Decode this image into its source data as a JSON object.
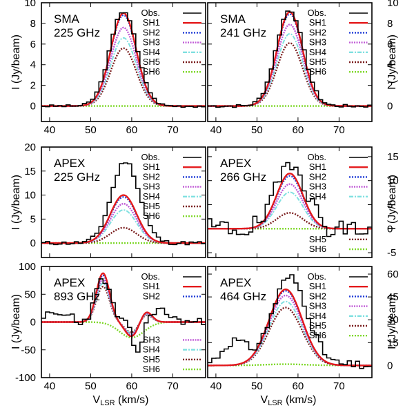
{
  "figure": {
    "x_axis_title": "V",
    "x_axis_title_sub": "LSR",
    "x_axis_title_units": " (km/s)",
    "y_axis_title": "I (Jy/beam)"
  },
  "colors": {
    "Obs.": "#000000",
    "SH1": "#e41a1c",
    "SH2": "#1f3bd6",
    "SH3": "#c05ad6",
    "SH4": "#7fe0e0",
    "SH5": "#7a1d1d",
    "SH6": "#7fd82a"
  },
  "chart_data": [
    {
      "type": "line",
      "title": "SMA 225 GHz",
      "label_lines": [
        "SMA",
        "225 GHz"
      ],
      "xlim": [
        38,
        78
      ],
      "ylim": [
        -1.5,
        10
      ],
      "x_ticks": [
        40,
        50,
        60,
        70
      ],
      "y_ticks": [
        0,
        2,
        4,
        6,
        8,
        10
      ],
      "y_tick_side": "left",
      "legend": {
        "top": [
          "Obs.",
          "SH1",
          "SH2",
          "SH3",
          "SH4",
          "SH5",
          "SH6"
        ],
        "bottom": []
      },
      "model": {
        "center": 58,
        "width": 3.1,
        "peaks": {
          "SH1": 9.0,
          "SH2": 8.8,
          "SH3": 7.6,
          "SH4": 6.6,
          "SH5": 5.6,
          "SH6": 0.0
        }
      },
      "obs": {
        "step": 1.0,
        "x0": 38,
        "noise": 0.12,
        "amp": 9.2,
        "center": 58,
        "width": 3.3,
        "seed": 3
      }
    },
    {
      "type": "line",
      "title": "SMA 241 GHz",
      "label_lines": [
        "SMA",
        "241 GHz"
      ],
      "xlim": [
        38,
        78
      ],
      "ylim": [
        -1.5,
        10
      ],
      "x_ticks": [
        40,
        50,
        60,
        70
      ],
      "y_ticks": [
        0,
        2,
        4,
        6,
        8,
        10
      ],
      "y_tick_side": "right",
      "legend": {
        "top": [
          "Obs.",
          "SH1",
          "SH2",
          "SH3",
          "SH4",
          "SH5",
          "SH6"
        ],
        "bottom": []
      },
      "model": {
        "center": 58,
        "width": 3.1,
        "peaks": {
          "SH1": 9.1,
          "SH2": 8.9,
          "SH3": 7.9,
          "SH4": 7.0,
          "SH5": 6.1,
          "SH6": 0.0
        }
      },
      "obs": {
        "step": 1.0,
        "x0": 38,
        "noise": 0.15,
        "amp": 9.3,
        "center": 58,
        "width": 3.3,
        "seed": 7
      }
    },
    {
      "type": "line",
      "title": "APEX 225 GHz",
      "label_lines": [
        "APEX",
        "225 GHz"
      ],
      "xlim": [
        38,
        78
      ],
      "ylim": [
        -3,
        20
      ],
      "x_ticks": [],
      "y_ticks": [
        0,
        5,
        10,
        15,
        20
      ],
      "y_tick_side": "left",
      "legend": {
        "top": [
          "Obs.",
          "SH1",
          "SH2",
          "SH3",
          "SH4",
          "SH5",
          "SH6"
        ],
        "bottom": []
      },
      "model": {
        "center": 58,
        "width": 3.2,
        "peaks": {
          "SH1": 10.0,
          "SH2": 9.6,
          "SH3": 8.2,
          "SH4": 6.9,
          "SH5": 3.2,
          "SH6": 0.0
        }
      },
      "obs": {
        "step": 1.0,
        "x0": 38,
        "noise": 0.4,
        "amp": 17.0,
        "center": 58.5,
        "width": 3.4,
        "seed": 11
      }
    },
    {
      "type": "line",
      "title": "APEX 266 GHz",
      "label_lines": [
        "APEX",
        "266 GHz"
      ],
      "xlim": [
        38,
        78
      ],
      "ylim": [
        -6,
        17
      ],
      "x_ticks": [],
      "y_ticks": [
        -5,
        0,
        5,
        10,
        15
      ],
      "y_tick_side": "right",
      "legend": {
        "top": [
          "Obs.",
          "SH1",
          "SH2",
          "SH3",
          "SH4"
        ],
        "bottom": [
          "SH5",
          "SH6"
        ]
      },
      "model": {
        "center": 58,
        "width": 3.2,
        "peaks": {
          "SH1": 11.5,
          "SH2": 11.0,
          "SH3": 9.3,
          "SH4": 7.6,
          "SH5": 3.3,
          "SH6": 0.0
        }
      },
      "obs": {
        "step": 1.0,
        "x0": 38,
        "noise": 2.2,
        "amp": 14.5,
        "center": 58.5,
        "width": 3.5,
        "seed": 19
      }
    },
    {
      "type": "line",
      "title": "APEX 893 GHz",
      "label_lines": [
        "APEX",
        "893 GHz"
      ],
      "xlim": [
        38,
        78
      ],
      "ylim": [
        -100,
        100
      ],
      "x_ticks": [
        40,
        50,
        60,
        70
      ],
      "y_ticks": [
        -100,
        -50,
        0,
        50,
        100
      ],
      "y_tick_side": "left",
      "legend": {
        "top": [
          "Obs.",
          "SH1",
          "SH2"
        ],
        "bottom": [
          "SH3",
          "SH4",
          "SH5",
          "SH6"
        ]
      },
      "model": {
        "center": 53,
        "width": 1.6,
        "peaks": {
          "SH1": 88,
          "SH2": 84,
          "SH3": 77,
          "SH4": 70,
          "SH5": 64,
          "SH6": 0
        }
      },
      "obs": {
        "step": 1.0,
        "x0": 38,
        "noise": 7,
        "amp": 78,
        "center": 53,
        "width": 1.8,
        "seed": 23
      }
    },
    {
      "type": "line",
      "title": "APEX 464 GHz",
      "label_lines": [
        "APEX",
        "464 GHz"
      ],
      "xlim": [
        38,
        78
      ],
      "ylim": [
        -8,
        65
      ],
      "x_ticks": [
        40,
        50,
        60,
        70
      ],
      "y_ticks": [
        0,
        15,
        30,
        45,
        60
      ],
      "y_tick_side": "right",
      "legend": {
        "top": [
          "Obs.",
          "SH1",
          "SH2",
          "SH3",
          "SH4",
          "SH5",
          "SH6"
        ],
        "bottom": []
      },
      "model": {
        "center": 57,
        "width": 4.0,
        "peaks": {
          "SH1": 50,
          "SH2": 49,
          "SH3": 46,
          "SH4": 42,
          "SH5": 38,
          "SH6": 0
        }
      },
      "obs": {
        "step": 1.0,
        "x0": 38,
        "noise": 3,
        "amp": 58,
        "center": 58,
        "width": 4.3,
        "seed": 31
      }
    }
  ]
}
